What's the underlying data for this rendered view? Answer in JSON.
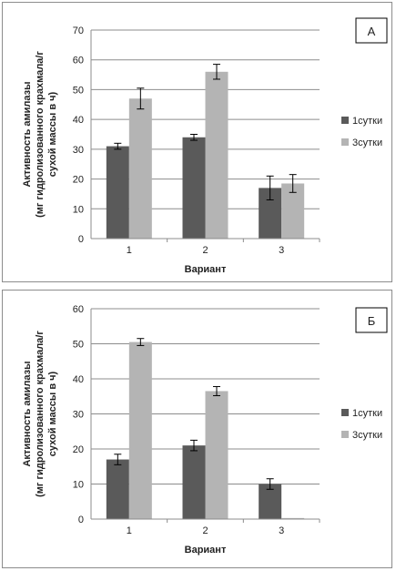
{
  "chart_data": [
    {
      "type": "bar",
      "panel_letter": "А",
      "categories": [
        "1",
        "2",
        "3"
      ],
      "series": [
        {
          "name": "1сутки",
          "values": [
            31,
            34,
            17
          ],
          "errors": [
            1,
            1,
            4
          ],
          "color": "#5a5a5a"
        },
        {
          "name": "3сутки",
          "values": [
            47,
            56,
            18.5
          ],
          "errors": [
            3.5,
            2.5,
            3
          ],
          "color": "#b4b4b4"
        }
      ],
      "xlabel": "Вариант",
      "ylabel_lines": [
        "Активность амилазы",
        "(мг гидролизованного  крахмала/г",
        "сухой массы в ч)"
      ],
      "ylim": [
        0,
        70
      ],
      "yticks": [
        0,
        10,
        20,
        30,
        40,
        50,
        60,
        70
      ],
      "grid": true,
      "legend": "right"
    },
    {
      "type": "bar",
      "panel_letter": "Б",
      "categories": [
        "1",
        "2",
        "3"
      ],
      "series": [
        {
          "name": "1сутки",
          "values": [
            17,
            21,
            10
          ],
          "errors": [
            1.5,
            1.5,
            1.5
          ],
          "color": "#5a5a5a"
        },
        {
          "name": "3сутки",
          "values": [
            50.5,
            36.5,
            0.3
          ],
          "errors": [
            1,
            1.3,
            0
          ],
          "color": "#b4b4b4"
        }
      ],
      "xlabel": "Вариант",
      "ylabel_lines": [
        "Активность амилазы",
        "(мг гидролизованного  крахмала/г",
        "сухой массы в ч)"
      ],
      "ylim": [
        0,
        60
      ],
      "yticks": [
        0,
        10,
        20,
        30,
        40,
        50,
        60
      ],
      "grid": true,
      "legend": "right"
    }
  ]
}
